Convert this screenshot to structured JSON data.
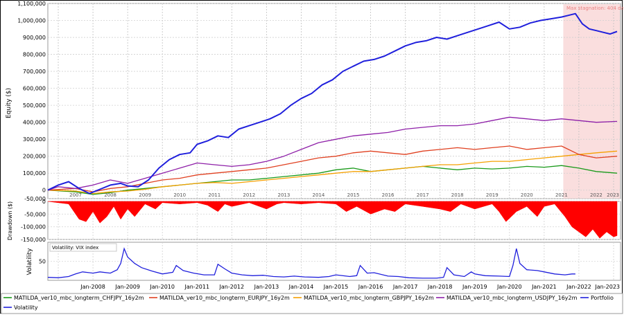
{
  "chart_data": [
    {
      "type": "line",
      "panel": "equity",
      "ylabel": "Equity ($)",
      "ylim": [
        -50000,
        1100000
      ],
      "ytick_labels": [
        "-50,000",
        "0",
        "100,000",
        "200,000",
        "300,000",
        "400,000",
        "500,000",
        "600,000",
        "700,000",
        "800,000",
        "900,000",
        "1,000,000",
        "1,100,000"
      ],
      "ytick_values": [
        -50000,
        0,
        100000,
        200000,
        300000,
        400000,
        500000,
        600000,
        700000,
        800000,
        900000,
        1000000,
        1100000
      ],
      "xlim": [
        2006.7,
        2023.2
      ],
      "year_labels": [
        "2007",
        "2008",
        "2009",
        "2010",
        "2011",
        "2012",
        "2013",
        "2014",
        "2015",
        "2016",
        "2017",
        "2018",
        "2019",
        "2020",
        "2021",
        "2022",
        "2023"
      ],
      "highlight": {
        "label": "Max stagnation: 404 da",
        "x_start": 2021.55,
        "x_end": 2023.2,
        "color": "#f9d6d6"
      },
      "grid": true,
      "series": [
        {
          "name": "Portfolio",
          "color": "#1f1fdc",
          "x": [
            2006.7,
            2007.0,
            2007.3,
            2007.6,
            2007.9,
            2008.2,
            2008.5,
            2008.8,
            2009.0,
            2009.3,
            2009.6,
            2009.9,
            2010.2,
            2010.5,
            2010.8,
            2011.0,
            2011.3,
            2011.6,
            2011.9,
            2012.2,
            2012.5,
            2012.8,
            2013.1,
            2013.4,
            2013.7,
            2014.0,
            2014.3,
            2014.6,
            2014.9,
            2015.2,
            2015.5,
            2015.8,
            2016.1,
            2016.4,
            2016.7,
            2017.0,
            2017.3,
            2017.6,
            2017.9,
            2018.2,
            2018.5,
            2018.8,
            2019.1,
            2019.4,
            2019.7,
            2020.0,
            2020.3,
            2020.6,
            2020.9,
            2021.2,
            2021.5,
            2021.7,
            2021.9,
            2022.1,
            2022.3,
            2022.5,
            2022.7,
            2022.9,
            2023.1
          ],
          "values": [
            0,
            30000,
            50000,
            10000,
            -20000,
            5000,
            30000,
            40000,
            25000,
            20000,
            60000,
            130000,
            180000,
            210000,
            220000,
            270000,
            290000,
            320000,
            310000,
            360000,
            380000,
            400000,
            420000,
            450000,
            500000,
            540000,
            570000,
            620000,
            650000,
            700000,
            730000,
            760000,
            770000,
            790000,
            820000,
            850000,
            870000,
            880000,
            900000,
            890000,
            910000,
            930000,
            950000,
            970000,
            990000,
            950000,
            960000,
            985000,
            1000000,
            1010000,
            1020000,
            1030000,
            1040000,
            980000,
            950000,
            940000,
            930000,
            920000,
            935000
          ]
        },
        {
          "name": "MATILDA_ver10_mbc_longterm_USDJPY_16y2m",
          "color": "#8e1fa8",
          "x": [
            2006.7,
            2007.0,
            2007.5,
            2008.0,
            2008.5,
            2009.0,
            2009.5,
            2010.0,
            2010.5,
            2011.0,
            2011.5,
            2012.0,
            2012.5,
            2013.0,
            2013.5,
            2014.0,
            2014.5,
            2015.0,
            2015.5,
            2016.0,
            2016.5,
            2017.0,
            2017.5,
            2018.0,
            2018.5,
            2019.0,
            2019.5,
            2020.0,
            2020.5,
            2021.0,
            2021.5,
            2022.0,
            2022.5,
            2023.1
          ],
          "values": [
            0,
            20000,
            10000,
            30000,
            60000,
            40000,
            70000,
            100000,
            130000,
            160000,
            150000,
            140000,
            150000,
            170000,
            200000,
            240000,
            280000,
            300000,
            320000,
            330000,
            340000,
            360000,
            370000,
            380000,
            380000,
            390000,
            410000,
            430000,
            420000,
            410000,
            420000,
            410000,
            400000,
            405000
          ]
        },
        {
          "name": "MATILDA_ver10_mbc_longterm_EURJPY_16y2m",
          "color": "#e04020",
          "x": [
            2006.7,
            2007.5,
            2008.0,
            2008.5,
            2009.0,
            2009.5,
            2010.0,
            2010.5,
            2011.0,
            2011.5,
            2012.0,
            2012.5,
            2013.0,
            2013.5,
            2014.0,
            2014.5,
            2015.0,
            2015.5,
            2016.0,
            2016.5,
            2017.0,
            2017.5,
            2018.0,
            2018.5,
            2019.0,
            2019.5,
            2020.0,
            2020.5,
            2021.0,
            2021.5,
            2022.0,
            2022.5,
            2023.1
          ],
          "values": [
            0,
            10000,
            -10000,
            10000,
            20000,
            40000,
            60000,
            70000,
            90000,
            100000,
            110000,
            120000,
            130000,
            150000,
            170000,
            190000,
            200000,
            220000,
            230000,
            220000,
            210000,
            230000,
            240000,
            250000,
            240000,
            250000,
            260000,
            240000,
            250000,
            260000,
            210000,
            190000,
            200000
          ]
        },
        {
          "name": "MATILDA_ver10_mbc_longterm_GBPJPY_16y2m",
          "color": "#f5a000",
          "x": [
            2006.7,
            2007.5,
            2008.0,
            2008.5,
            2009.0,
            2009.5,
            2010.0,
            2010.5,
            2011.0,
            2011.5,
            2012.0,
            2012.5,
            2013.0,
            2013.5,
            2014.0,
            2014.5,
            2015.0,
            2015.5,
            2016.0,
            2016.5,
            2017.0,
            2017.5,
            2018.0,
            2018.5,
            2019.0,
            2019.5,
            2020.0,
            2020.5,
            2021.0,
            2021.5,
            2022.0,
            2022.5,
            2023.1
          ],
          "values": [
            0,
            -5000,
            -20000,
            -10000,
            -5000,
            5000,
            20000,
            30000,
            40000,
            45000,
            40000,
            50000,
            60000,
            70000,
            80000,
            90000,
            100000,
            110000,
            110000,
            120000,
            130000,
            140000,
            150000,
            150000,
            160000,
            170000,
            170000,
            180000,
            190000,
            200000,
            210000,
            220000,
            230000
          ]
        },
        {
          "name": "MATILDA_ver10_mbc_longterm_CHFJPY_16y2m",
          "color": "#1a9a1a",
          "x": [
            2006.7,
            2007.5,
            2008.0,
            2008.5,
            2009.0,
            2009.5,
            2010.0,
            2010.5,
            2011.0,
            2011.5,
            2012.0,
            2012.5,
            2013.0,
            2013.5,
            2014.0,
            2014.5,
            2015.0,
            2015.5,
            2016.0,
            2016.5,
            2017.0,
            2017.5,
            2018.0,
            2018.5,
            2019.0,
            2019.5,
            2020.0,
            2020.5,
            2021.0,
            2021.5,
            2022.0,
            2022.5,
            2023.1
          ],
          "values": [
            0,
            -10000,
            -25000,
            -15000,
            0,
            10000,
            20000,
            30000,
            40000,
            50000,
            60000,
            60000,
            70000,
            80000,
            90000,
            100000,
            120000,
            130000,
            110000,
            120000,
            130000,
            140000,
            130000,
            120000,
            130000,
            125000,
            130000,
            140000,
            135000,
            145000,
            130000,
            110000,
            100000
          ]
        }
      ]
    },
    {
      "type": "area",
      "panel": "drawdown",
      "ylabel": "Drawdown ($)",
      "ylim": [
        -150000,
        0
      ],
      "ytick_labels": [
        "0",
        "-50,000",
        "-100,000",
        "-150,000"
      ],
      "ytick_values": [
        0,
        -50000,
        -100000,
        -150000
      ],
      "color": "#ff0000",
      "grid": true,
      "x": [
        2006.7,
        2007.3,
        2007.6,
        2007.8,
        2008.0,
        2008.2,
        2008.4,
        2008.6,
        2008.8,
        2009.0,
        2009.2,
        2009.5,
        2009.8,
        2010.0,
        2010.5,
        2011.0,
        2011.3,
        2011.6,
        2011.8,
        2012.0,
        2012.5,
        2013.0,
        2013.3,
        2013.5,
        2014.0,
        2014.5,
        2015.0,
        2015.3,
        2015.6,
        2016.0,
        2016.4,
        2016.7,
        2017.0,
        2017.5,
        2018.0,
        2018.3,
        2018.6,
        2019.0,
        2019.5,
        2019.7,
        2019.9,
        2020.2,
        2020.5,
        2020.8,
        2021.0,
        2021.3,
        2021.6,
        2021.8,
        2022.0,
        2022.2,
        2022.4,
        2022.6,
        2022.8,
        2023.0,
        2023.1
      ],
      "values": [
        0,
        -10000,
        -70000,
        -80000,
        -40000,
        -85000,
        -60000,
        -20000,
        -70000,
        -30000,
        -60000,
        -10000,
        -30000,
        -5000,
        -10000,
        -5000,
        -15000,
        -40000,
        -10000,
        -20000,
        -5000,
        -30000,
        -10000,
        -5000,
        -10000,
        -5000,
        -10000,
        -40000,
        -20000,
        -50000,
        -30000,
        -40000,
        -10000,
        -20000,
        -30000,
        -40000,
        -10000,
        -30000,
        -10000,
        -40000,
        -80000,
        -40000,
        -20000,
        -60000,
        -20000,
        -10000,
        -60000,
        -100000,
        -120000,
        -140000,
        -110000,
        -145000,
        -120000,
        -140000,
        -135000
      ]
    },
    {
      "type": "line",
      "panel": "volatility",
      "ylabel": "Volatility",
      "annotation": "Volatility: VIX index",
      "ylim": [
        5,
        95
      ],
      "ytick_labels": [
        "50"
      ],
      "ytick_values": [
        50
      ],
      "grid": true,
      "x_labels": [
        "Jan-2008",
        "Jan-2009",
        "Jan-2010",
        "Jan-2011",
        "Jan-2012",
        "Jan-2013",
        "Jan-2014",
        "Jan-2015",
        "Jan-2016",
        "Jan-2017",
        "Jan-2018",
        "Jan-2019",
        "Jan-2020",
        "Jan-2021",
        "Jan-2022",
        "Jan-2023"
      ],
      "x_label_values": [
        2008,
        2009,
        2010,
        2011,
        2012,
        2013,
        2014,
        2015,
        2016,
        2017,
        2018,
        2019,
        2020,
        2021,
        2022,
        2023
      ],
      "series": [
        {
          "name": "Volatility",
          "color": "#1f1fdc",
          "x": [
            2006.7,
            2007.0,
            2007.3,
            2007.5,
            2007.7,
            2008.0,
            2008.2,
            2008.5,
            2008.7,
            2008.8,
            2008.9,
            2009.0,
            2009.2,
            2009.4,
            2009.7,
            2010.0,
            2010.3,
            2010.4,
            2010.6,
            2010.9,
            2011.2,
            2011.5,
            2011.6,
            2011.8,
            2012.0,
            2012.3,
            2012.6,
            2012.9,
            2013.2,
            2013.5,
            2013.8,
            2014.1,
            2014.5,
            2014.8,
            2015.0,
            2015.4,
            2015.6,
            2015.7,
            2015.9,
            2016.1,
            2016.5,
            2016.8,
            2017.1,
            2017.5,
            2017.9,
            2018.1,
            2018.2,
            2018.4,
            2018.7,
            2018.9,
            2019.0,
            2019.3,
            2019.7,
            2020.0,
            2020.1,
            2020.2,
            2020.3,
            2020.5,
            2020.8,
            2021.0,
            2021.3,
            2021.6,
            2021.8,
            2021.9
          ],
          "values": [
            12,
            11,
            14,
            20,
            25,
            22,
            25,
            22,
            30,
            45,
            80,
            60,
            45,
            35,
            27,
            20,
            24,
            40,
            28,
            22,
            18,
            18,
            43,
            32,
            22,
            18,
            16,
            17,
            14,
            13,
            15,
            13,
            12,
            14,
            18,
            14,
            16,
            40,
            22,
            23,
            15,
            14,
            11,
            10,
            10,
            12,
            35,
            18,
            14,
            25,
            20,
            16,
            15,
            14,
            40,
            80,
            45,
            30,
            28,
            25,
            20,
            18,
            20,
            20
          ]
        }
      ]
    }
  ],
  "legend": {
    "items": [
      {
        "label": "MATILDA_ver10_mbc_longterm_CHFJPY_16y2m",
        "color": "#1a9a1a"
      },
      {
        "label": "MATILDA_ver10_mbc_longterm_EURJPY_16y2m",
        "color": "#e04020"
      },
      {
        "label": "MATILDA_ver10_mbc_longterm_GBPJPY_16y2m",
        "color": "#f5a000"
      },
      {
        "label": "MATILDA_ver10_mbc_longterm_USDJPY_16y2m",
        "color": "#8e1fa8"
      },
      {
        "label": "Portfolio",
        "color": "#1f1fdc"
      },
      {
        "label": "Volatility",
        "color": "#1f1fdc"
      }
    ]
  }
}
